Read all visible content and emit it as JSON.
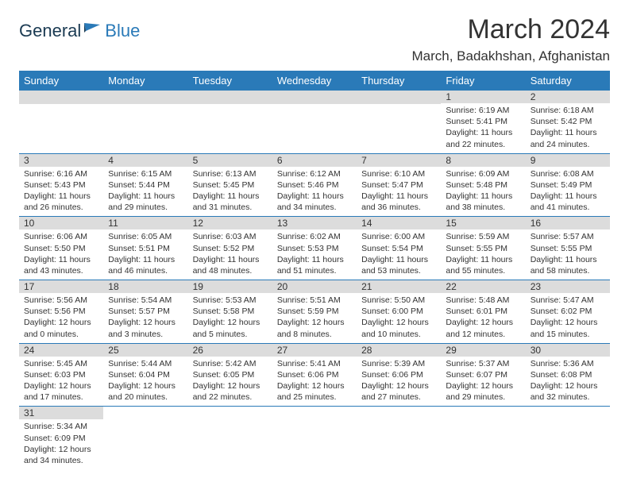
{
  "logo": {
    "text1": "General",
    "text2": "Blue"
  },
  "title": "March 2024",
  "location": "March, Badakhshan, Afghanistan",
  "colors": {
    "header_bg": "#2a7ab8",
    "logo_blue": "#2a7ab8",
    "logo_dark": "#1a3a52",
    "daynum_bg": "#dcdcdc",
    "border": "#2a7ab8"
  },
  "dayHeaders": [
    "Sunday",
    "Monday",
    "Tuesday",
    "Wednesday",
    "Thursday",
    "Friday",
    "Saturday"
  ],
  "weeks": [
    [
      {
        "blank": true
      },
      {
        "blank": true
      },
      {
        "blank": true
      },
      {
        "blank": true
      },
      {
        "blank": true
      },
      {
        "n": "1",
        "sunrise": "6:19 AM",
        "sunset": "5:41 PM",
        "day_h": "11",
        "day_m": "22"
      },
      {
        "n": "2",
        "sunrise": "6:18 AM",
        "sunset": "5:42 PM",
        "day_h": "11",
        "day_m": "24"
      }
    ],
    [
      {
        "n": "3",
        "sunrise": "6:16 AM",
        "sunset": "5:43 PM",
        "day_h": "11",
        "day_m": "26"
      },
      {
        "n": "4",
        "sunrise": "6:15 AM",
        "sunset": "5:44 PM",
        "day_h": "11",
        "day_m": "29"
      },
      {
        "n": "5",
        "sunrise": "6:13 AM",
        "sunset": "5:45 PM",
        "day_h": "11",
        "day_m": "31"
      },
      {
        "n": "6",
        "sunrise": "6:12 AM",
        "sunset": "5:46 PM",
        "day_h": "11",
        "day_m": "34"
      },
      {
        "n": "7",
        "sunrise": "6:10 AM",
        "sunset": "5:47 PM",
        "day_h": "11",
        "day_m": "36"
      },
      {
        "n": "8",
        "sunrise": "6:09 AM",
        "sunset": "5:48 PM",
        "day_h": "11",
        "day_m": "38"
      },
      {
        "n": "9",
        "sunrise": "6:08 AM",
        "sunset": "5:49 PM",
        "day_h": "11",
        "day_m": "41"
      }
    ],
    [
      {
        "n": "10",
        "sunrise": "6:06 AM",
        "sunset": "5:50 PM",
        "day_h": "11",
        "day_m": "43"
      },
      {
        "n": "11",
        "sunrise": "6:05 AM",
        "sunset": "5:51 PM",
        "day_h": "11",
        "day_m": "46"
      },
      {
        "n": "12",
        "sunrise": "6:03 AM",
        "sunset": "5:52 PM",
        "day_h": "11",
        "day_m": "48"
      },
      {
        "n": "13",
        "sunrise": "6:02 AM",
        "sunset": "5:53 PM",
        "day_h": "11",
        "day_m": "51"
      },
      {
        "n": "14",
        "sunrise": "6:00 AM",
        "sunset": "5:54 PM",
        "day_h": "11",
        "day_m": "53"
      },
      {
        "n": "15",
        "sunrise": "5:59 AM",
        "sunset": "5:55 PM",
        "day_h": "11",
        "day_m": "55"
      },
      {
        "n": "16",
        "sunrise": "5:57 AM",
        "sunset": "5:55 PM",
        "day_h": "11",
        "day_m": "58"
      }
    ],
    [
      {
        "n": "17",
        "sunrise": "5:56 AM",
        "sunset": "5:56 PM",
        "day_h": "12",
        "day_m": "0"
      },
      {
        "n": "18",
        "sunrise": "5:54 AM",
        "sunset": "5:57 PM",
        "day_h": "12",
        "day_m": "3"
      },
      {
        "n": "19",
        "sunrise": "5:53 AM",
        "sunset": "5:58 PM",
        "day_h": "12",
        "day_m": "5"
      },
      {
        "n": "20",
        "sunrise": "5:51 AM",
        "sunset": "5:59 PM",
        "day_h": "12",
        "day_m": "8"
      },
      {
        "n": "21",
        "sunrise": "5:50 AM",
        "sunset": "6:00 PM",
        "day_h": "12",
        "day_m": "10"
      },
      {
        "n": "22",
        "sunrise": "5:48 AM",
        "sunset": "6:01 PM",
        "day_h": "12",
        "day_m": "12"
      },
      {
        "n": "23",
        "sunrise": "5:47 AM",
        "sunset": "6:02 PM",
        "day_h": "12",
        "day_m": "15"
      }
    ],
    [
      {
        "n": "24",
        "sunrise": "5:45 AM",
        "sunset": "6:03 PM",
        "day_h": "12",
        "day_m": "17"
      },
      {
        "n": "25",
        "sunrise": "5:44 AM",
        "sunset": "6:04 PM",
        "day_h": "12",
        "day_m": "20"
      },
      {
        "n": "26",
        "sunrise": "5:42 AM",
        "sunset": "6:05 PM",
        "day_h": "12",
        "day_m": "22"
      },
      {
        "n": "27",
        "sunrise": "5:41 AM",
        "sunset": "6:06 PM",
        "day_h": "12",
        "day_m": "25"
      },
      {
        "n": "28",
        "sunrise": "5:39 AM",
        "sunset": "6:06 PM",
        "day_h": "12",
        "day_m": "27"
      },
      {
        "n": "29",
        "sunrise": "5:37 AM",
        "sunset": "6:07 PM",
        "day_h": "12",
        "day_m": "29"
      },
      {
        "n": "30",
        "sunrise": "5:36 AM",
        "sunset": "6:08 PM",
        "day_h": "12",
        "day_m": "32"
      }
    ],
    [
      {
        "n": "31",
        "sunrise": "5:34 AM",
        "sunset": "6:09 PM",
        "day_h": "12",
        "day_m": "34"
      },
      {
        "blank": true
      },
      {
        "blank": true
      },
      {
        "blank": true
      },
      {
        "blank": true
      },
      {
        "blank": true
      },
      {
        "blank": true
      }
    ]
  ],
  "labels": {
    "sunrise": "Sunrise:",
    "sunset": "Sunset:",
    "daylight": "Daylight:",
    "hours": "hours",
    "and": "and",
    "minutes": "minutes."
  }
}
